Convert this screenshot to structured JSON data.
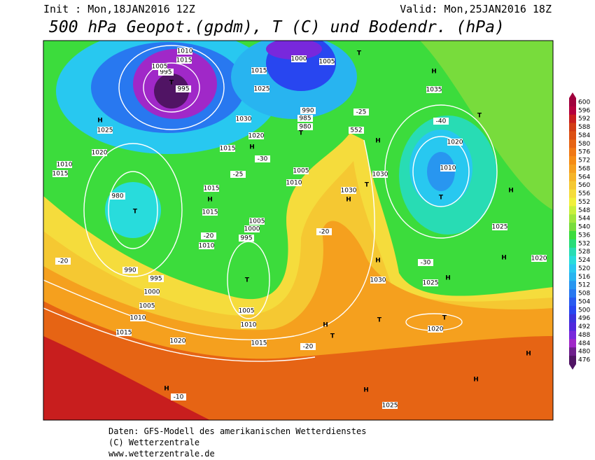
{
  "header": {
    "init": "Init : Mon,18JAN2016 12Z",
    "valid": "Valid: Mon,25JAN2016 18Z",
    "title": "500 hPa Geopot.(gpdm), T (C) und Bodendr. (hPa)"
  },
  "colorbar": {
    "levels": [
      600,
      596,
      592,
      588,
      584,
      580,
      576,
      572,
      568,
      564,
      560,
      556,
      552,
      548,
      544,
      540,
      536,
      532,
      528,
      524,
      520,
      516,
      512,
      508,
      504,
      500,
      496,
      492,
      488,
      484,
      480,
      476
    ],
    "colors": [
      "#a0003c",
      "#b4003c",
      "#c81e1e",
      "#d23c14",
      "#dc5014",
      "#e66414",
      "#f07814",
      "#f58c14",
      "#f5a01e",
      "#f5b428",
      "#f5c832",
      "#f5dc3c",
      "#f0f03c",
      "#c8f03c",
      "#a0e63c",
      "#78dc3c",
      "#3cdc3c",
      "#28dc78",
      "#28dcb4",
      "#28dcdc",
      "#28c8f0",
      "#28b4f0",
      "#2896f0",
      "#2878f0",
      "#285af0",
      "#2846f0",
      "#3c32dc",
      "#5028dc",
      "#7828dc",
      "#a028c8",
      "#6e1e8c",
      "#501464"
    ]
  },
  "map_labels": [
    "H",
    "1025",
    "T",
    "995",
    "995",
    "1005",
    "1010",
    "1015",
    "1000",
    "1005",
    "T",
    "H",
    "1035",
    "T",
    "1020",
    "1010",
    "T",
    "H",
    "1025",
    "H",
    "1020",
    "-30",
    "1025",
    "H",
    "1030",
    "H",
    "1030",
    "H",
    "T",
    "H",
    "1030",
    "1015",
    "H",
    "1015",
    "T",
    "980",
    "1010",
    "1015",
    "1020",
    "-20",
    "990",
    "995",
    "1000",
    "1005",
    "1010",
    "1015",
    "1020",
    "T",
    "1005",
    "1010",
    "1015",
    "H",
    "T",
    "T",
    "T",
    "1020",
    "H",
    "H",
    "H",
    "-10",
    "H",
    "1025",
    "-20",
    "1030",
    "1020",
    "1015",
    "H",
    "1025",
    "1015",
    "990",
    "985",
    "980",
    "T",
    "1005",
    "1010",
    "1000",
    "995",
    "1005",
    "1010",
    "-20",
    "-20",
    "-25",
    "-30",
    "552",
    "-25",
    "-40"
  ],
  "footer": [
    "Daten: GFS-Modell des amerikanischen Wetterdienstes",
    "(C) Wetterzentrale",
    "www.wetterzentrale.de"
  ]
}
